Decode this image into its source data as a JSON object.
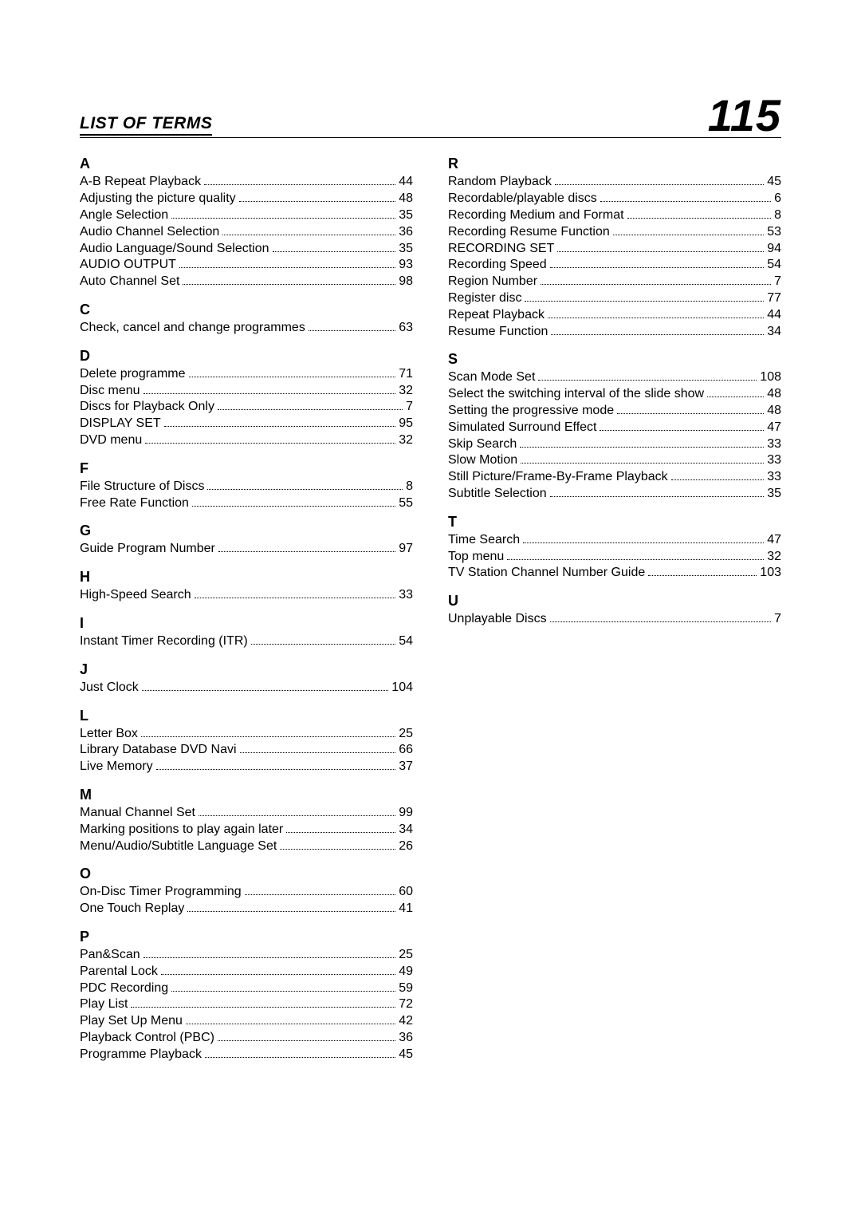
{
  "header": {
    "title": "LIST OF TERMS",
    "page_number": "115"
  },
  "text_color": "#000000",
  "background_color": "#ffffff",
  "font_family": "Optima",
  "title_fontsize": 21,
  "letter_fontsize": 18,
  "entry_fontsize": 16,
  "pagenum_fontsize": 56,
  "left_column": [
    {
      "letter": "A",
      "entries": [
        {
          "term": "A-B Repeat Playback",
          "page": "44"
        },
        {
          "term": "Adjusting the picture quality",
          "page": "48"
        },
        {
          "term": "Angle Selection",
          "page": "35"
        },
        {
          "term": "Audio Channel Selection",
          "page": "36"
        },
        {
          "term": "Audio Language/Sound Selection",
          "page": "35"
        },
        {
          "term": "AUDIO OUTPUT",
          "page": "93"
        },
        {
          "term": "Auto Channel Set",
          "page": "98"
        }
      ]
    },
    {
      "letter": "C",
      "entries": [
        {
          "term": "Check, cancel and change programmes",
          "page": "63"
        }
      ]
    },
    {
      "letter": "D",
      "entries": [
        {
          "term": "Delete programme",
          "page": "71"
        },
        {
          "term": "Disc menu",
          "page": "32"
        },
        {
          "term": "Discs for Playback Only",
          "page": "7"
        },
        {
          "term": "DISPLAY SET",
          "page": "95"
        },
        {
          "term": "DVD menu",
          "page": "32"
        }
      ]
    },
    {
      "letter": "F",
      "entries": [
        {
          "term": "File Structure of Discs",
          "page": "8"
        },
        {
          "term": "Free Rate Function",
          "page": "55"
        }
      ]
    },
    {
      "letter": "G",
      "entries": [
        {
          "term": "Guide Program Number",
          "page": "97"
        }
      ]
    },
    {
      "letter": "H",
      "entries": [
        {
          "term": "High-Speed Search",
          "page": "33"
        }
      ]
    },
    {
      "letter": "I",
      "entries": [
        {
          "term": "Instant Timer Recording (ITR)",
          "page": "54"
        }
      ]
    },
    {
      "letter": "J",
      "entries": [
        {
          "term": "Just Clock",
          "page": "104"
        }
      ]
    },
    {
      "letter": "L",
      "entries": [
        {
          "term": "Letter Box",
          "page": "25"
        },
        {
          "term": "Library Database DVD Navi",
          "page": "66"
        },
        {
          "term": "Live Memory",
          "page": "37"
        }
      ]
    },
    {
      "letter": "M",
      "entries": [
        {
          "term": "Manual Channel Set",
          "page": "99"
        },
        {
          "term": "Marking positions to play again later",
          "page": "34"
        },
        {
          "term": "Menu/Audio/Subtitle Language Set",
          "page": "26"
        }
      ]
    },
    {
      "letter": "O",
      "entries": [
        {
          "term": "On-Disc Timer Programming",
          "page": "60"
        },
        {
          "term": "One Touch Replay",
          "page": "41"
        }
      ]
    },
    {
      "letter": "P",
      "entries": [
        {
          "term": "Pan&Scan",
          "page": "25"
        },
        {
          "term": "Parental Lock",
          "page": "49"
        },
        {
          "term": "PDC Recording",
          "page": "59"
        },
        {
          "term": "Play List",
          "page": "72"
        },
        {
          "term": "Play Set Up Menu",
          "page": "42"
        },
        {
          "term": "Playback Control (PBC)",
          "page": "36"
        },
        {
          "term": "Programme Playback",
          "page": "45"
        }
      ]
    }
  ],
  "right_column": [
    {
      "letter": "R",
      "entries": [
        {
          "term": "Random Playback",
          "page": "45"
        },
        {
          "term": "Recordable/playable discs",
          "page": "6"
        },
        {
          "term": "Recording Medium and Format",
          "page": "8"
        },
        {
          "term": "Recording Resume Function",
          "page": "53"
        },
        {
          "term": "RECORDING SET",
          "page": "94"
        },
        {
          "term": "Recording Speed",
          "page": "54"
        },
        {
          "term": "Region Number",
          "page": "7"
        },
        {
          "term": "Register disc",
          "page": "77"
        },
        {
          "term": "Repeat Playback",
          "page": "44"
        },
        {
          "term": "Resume Function",
          "page": "34"
        }
      ]
    },
    {
      "letter": "S",
      "entries": [
        {
          "term": "Scan Mode Set",
          "page": "108"
        },
        {
          "term": "Select the switching interval of the slide show",
          "page": "48"
        },
        {
          "term": "Setting the progressive mode",
          "page": "48"
        },
        {
          "term": "Simulated Surround Effect",
          "page": "47"
        },
        {
          "term": "Skip Search",
          "page": "33"
        },
        {
          "term": "Slow Motion",
          "page": "33"
        },
        {
          "term": "Still Picture/Frame-By-Frame Playback",
          "page": "33"
        },
        {
          "term": "Subtitle Selection",
          "page": "35"
        }
      ]
    },
    {
      "letter": "T",
      "entries": [
        {
          "term": "Time Search",
          "page": "47"
        },
        {
          "term": "Top menu",
          "page": "32"
        },
        {
          "term": "TV Station Channel Number Guide",
          "page": "103"
        }
      ]
    },
    {
      "letter": "U",
      "entries": [
        {
          "term": "Unplayable Discs",
          "page": "7"
        }
      ]
    }
  ]
}
